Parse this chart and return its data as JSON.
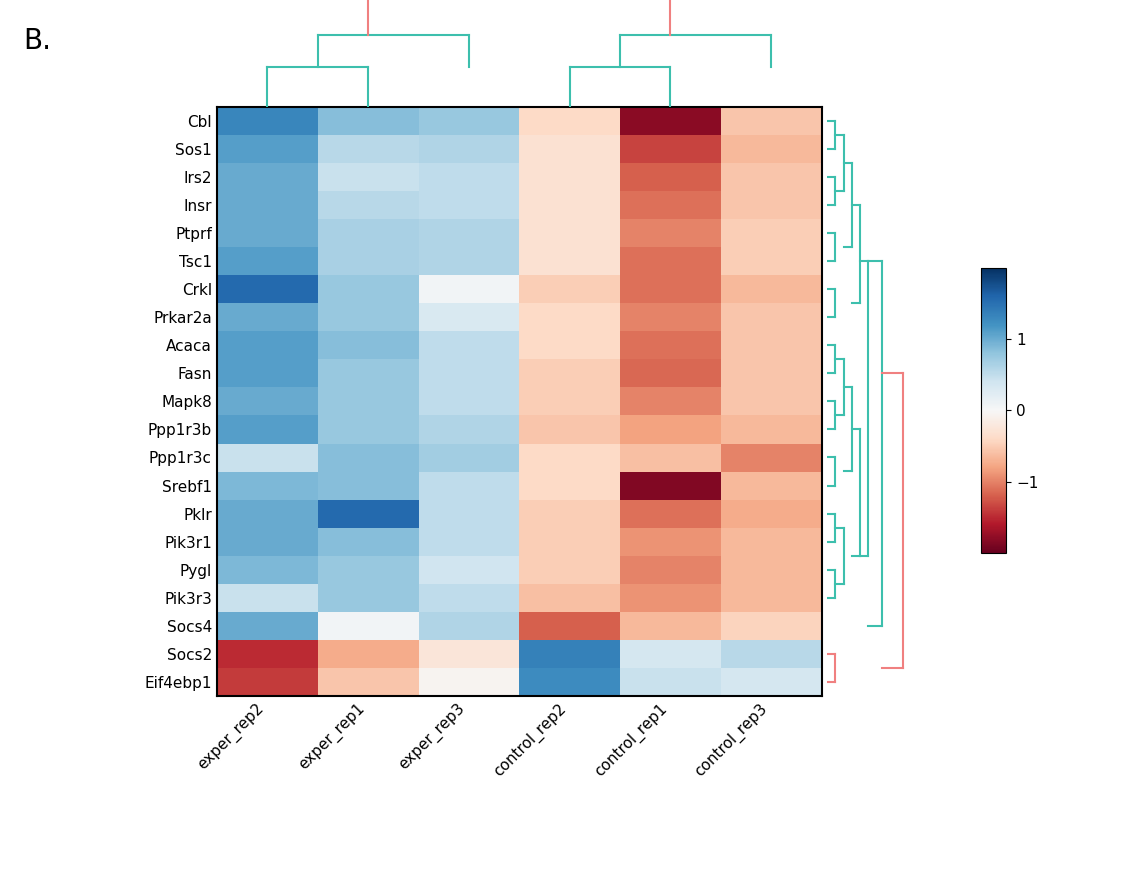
{
  "title_label": "B.",
  "row_labels_ordered": [
    "Cbl",
    "Sos1",
    "Irs2",
    "Insr",
    "Ptprf",
    "Tsc1",
    "Crkl",
    "Prkar2a",
    "Acaca",
    "Fasn",
    "Mapk8",
    "Ppp1r3b",
    "Ppp1r3c",
    "Srebf1",
    "Pklr",
    "Pik3r1",
    "Pygl",
    "Pik3r3",
    "Socs4",
    "Socs2",
    "Eif4ebp1"
  ],
  "col_labels_ordered": [
    "exper_rep2",
    "exper_rep1",
    "exper_rep3",
    "control_rep2",
    "control_rep1",
    "control_rep3"
  ],
  "data": [
    [
      1.3,
      0.85,
      0.75,
      -0.4,
      -1.8,
      -0.55
    ],
    [
      1.1,
      0.55,
      0.6,
      -0.3,
      -1.35,
      -0.65
    ],
    [
      1.0,
      0.45,
      0.5,
      -0.3,
      -1.2,
      -0.55
    ],
    [
      1.0,
      0.55,
      0.5,
      -0.3,
      -1.1,
      -0.55
    ],
    [
      1.0,
      0.65,
      0.6,
      -0.3,
      -1.0,
      -0.5
    ],
    [
      1.1,
      0.65,
      0.6,
      -0.3,
      -1.1,
      -0.5
    ],
    [
      1.55,
      0.75,
      0.05,
      -0.5,
      -1.1,
      -0.65
    ],
    [
      1.0,
      0.75,
      0.3,
      -0.4,
      -1.0,
      -0.55
    ],
    [
      1.1,
      0.85,
      0.5,
      -0.4,
      -1.1,
      -0.55
    ],
    [
      1.1,
      0.75,
      0.5,
      -0.5,
      -1.15,
      -0.55
    ],
    [
      1.0,
      0.75,
      0.5,
      -0.5,
      -1.0,
      -0.55
    ],
    [
      1.1,
      0.75,
      0.6,
      -0.55,
      -0.8,
      -0.65
    ],
    [
      0.45,
      0.85,
      0.7,
      -0.4,
      -0.6,
      -1.0
    ],
    [
      0.9,
      0.85,
      0.5,
      -0.4,
      -1.85,
      -0.65
    ],
    [
      1.0,
      1.55,
      0.5,
      -0.5,
      -1.1,
      -0.75
    ],
    [
      1.0,
      0.85,
      0.5,
      -0.5,
      -0.9,
      -0.65
    ],
    [
      0.9,
      0.75,
      0.4,
      -0.5,
      -1.0,
      -0.65
    ],
    [
      0.45,
      0.75,
      0.5,
      -0.6,
      -0.9,
      -0.65
    ],
    [
      1.0,
      0.05,
      0.6,
      -1.2,
      -0.65,
      -0.45
    ],
    [
      -1.5,
      -0.75,
      -0.25,
      1.35,
      0.35,
      0.55
    ],
    [
      -1.4,
      -0.55,
      -0.05,
      1.25,
      0.45,
      0.35
    ]
  ],
  "cmap_name": "RdBu",
  "vmin": -2.0,
  "vmax": 2.0,
  "teal": "#3dbfad",
  "pink": "#f08080",
  "colorbar_ticks": [
    -1,
    0,
    1
  ],
  "background_color": "#ffffff"
}
